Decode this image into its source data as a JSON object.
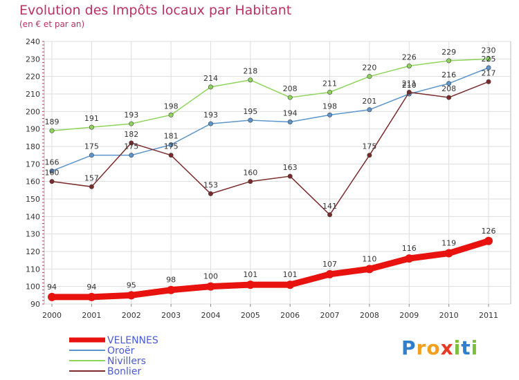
{
  "chart_data": {
    "type": "line",
    "title": "Evolution des Impôts locaux par Habitant",
    "subtitle": "(en € et par an)",
    "xlabel": "",
    "ylabel": "",
    "ylim": [
      90,
      240
    ],
    "y_ticks": [
      90,
      100,
      110,
      120,
      130,
      140,
      150,
      160,
      170,
      180,
      190,
      200,
      210,
      220,
      230,
      240
    ],
    "categories": [
      "2000",
      "2001",
      "2002",
      "2003",
      "2004",
      "2005",
      "2006",
      "2007",
      "2008",
      "2009",
      "2010",
      "2011"
    ],
    "grid": true,
    "legend_position": "bottom-left",
    "series": [
      {
        "name": "VELENNES",
        "color": "#e8120f",
        "values": [
          94,
          94,
          95,
          98,
          100,
          101,
          101,
          107,
          110,
          116,
          119,
          126
        ]
      },
      {
        "name": "Oroër",
        "color": "#5c94cc",
        "values": [
          166,
          175,
          175,
          181,
          193,
          195,
          194,
          198,
          201,
          210,
          216,
          225
        ]
      },
      {
        "name": "Nivillers",
        "color": "#8ed45a",
        "values": [
          189,
          191,
          193,
          198,
          214,
          218,
          208,
          211,
          220,
          226,
          229,
          230
        ]
      },
      {
        "name": "Bonlier",
        "color": "#7a2a2a",
        "values": [
          160,
          157,
          182,
          175,
          153,
          160,
          163,
          141,
          175,
          211,
          208,
          217
        ]
      }
    ]
  },
  "logo": {
    "letters": [
      "P",
      "r",
      "o",
      "x",
      "i",
      "t",
      "i"
    ],
    "colors": [
      "#2f7fd0",
      "#f29f1c",
      "#f29f1c",
      "#e63a22",
      "#7cbf3a",
      "#2f7fd0",
      "#7cbf3a"
    ]
  }
}
